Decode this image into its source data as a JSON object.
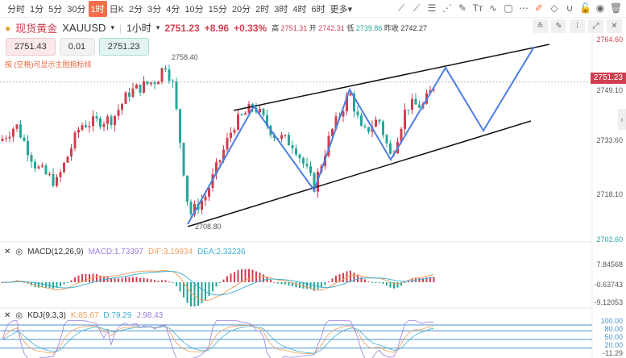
{
  "timeframes": [
    "分时",
    "1分",
    "5分",
    "30分",
    "1时",
    "日K",
    "2分",
    "3分",
    "4分",
    "10分",
    "15分",
    "20分",
    "2时",
    "3时",
    "4时",
    "6时",
    "更多▾"
  ],
  "active_timeframe": "1时",
  "toolbar_icons": [
    "line-tool-icon",
    "ray-tool-icon",
    "fib-tool-icon",
    "fan-tool-icon",
    "pen-tool-icon",
    "text-tool-icon",
    "wave-tool-icon",
    "rect-tool-icon",
    "more-icon",
    "edit-icon",
    "eraser-icon",
    "magnet-icon",
    "lock-icon",
    "eye-icon",
    "trash-icon"
  ],
  "toolbar_glyphs": [
    "⟋",
    "⟋",
    "☰",
    "⋰",
    "✎",
    "Tт",
    "∿",
    "▢",
    "⋯",
    "✐",
    "◇",
    "∪",
    "🔓",
    "◉",
    "🗑"
  ],
  "symbol": {
    "name": "现货黄金",
    "code": "XAUUSD",
    "interval": "1小时",
    "price": "2751.23",
    "change": "+8.96",
    "change_pct": "+0.33%",
    "high_label": "高",
    "high": "2751.31",
    "open_label": "开",
    "open": "2742.31",
    "low_label": "低",
    "low": "2739.86",
    "prev_label": "昨收",
    "prev": "2742.27"
  },
  "order": {
    "sell": "2751.43",
    "qty": "0.01",
    "buy": "2751.23"
  },
  "hint": "按 (空格)可显示主图指标线",
  "price_axis": [
    "2764.60",
    "2749.10",
    "2733.60",
    "2718.10",
    "2702.60"
  ],
  "current_price_tag": "2751.23",
  "annotations": {
    "high": "2758.40",
    "low": "2708.80"
  },
  "waypoints": [
    [
      0,
      2733
    ],
    [
      20,
      2738
    ],
    [
      45,
      2725
    ],
    [
      70,
      2720
    ],
    [
      100,
      2738
    ],
    [
      140,
      2740
    ],
    [
      160,
      2748
    ],
    [
      195,
      2752
    ],
    [
      205,
      2757
    ],
    [
      215,
      2750
    ],
    [
      235,
      2710
    ],
    [
      255,
      2716
    ],
    [
      290,
      2738
    ],
    [
      315,
      2744
    ],
    [
      340,
      2735
    ],
    [
      365,
      2732
    ],
    [
      390,
      2719
    ],
    [
      410,
      2735
    ],
    [
      434,
      2748
    ],
    [
      450,
      2735
    ],
    [
      470,
      2740
    ],
    [
      485,
      2728
    ],
    [
      505,
      2744
    ],
    [
      525,
      2744
    ],
    [
      541,
      2751
    ]
  ],
  "macd": {
    "label": "MACD(12,26,9)",
    "macd": "MACD:1.73397",
    "dif": "DIF:3.19934",
    "dea": "DEA:2.33236",
    "axis": [
      "7.84568",
      "-0.63743",
      "-9.12053"
    ]
  },
  "kdj": {
    "label": "KDJ(9,3,3)",
    "k": "K:85.67",
    "d": "D:79.29",
    "j": "J:98.43",
    "axis": [
      "100.00",
      "80.00",
      "50.00",
      "20.00",
      "-11.29"
    ]
  },
  "colors": {
    "up": "#d03f50",
    "down": "#26a69a",
    "drawing": "#4a7fe0"
  }
}
